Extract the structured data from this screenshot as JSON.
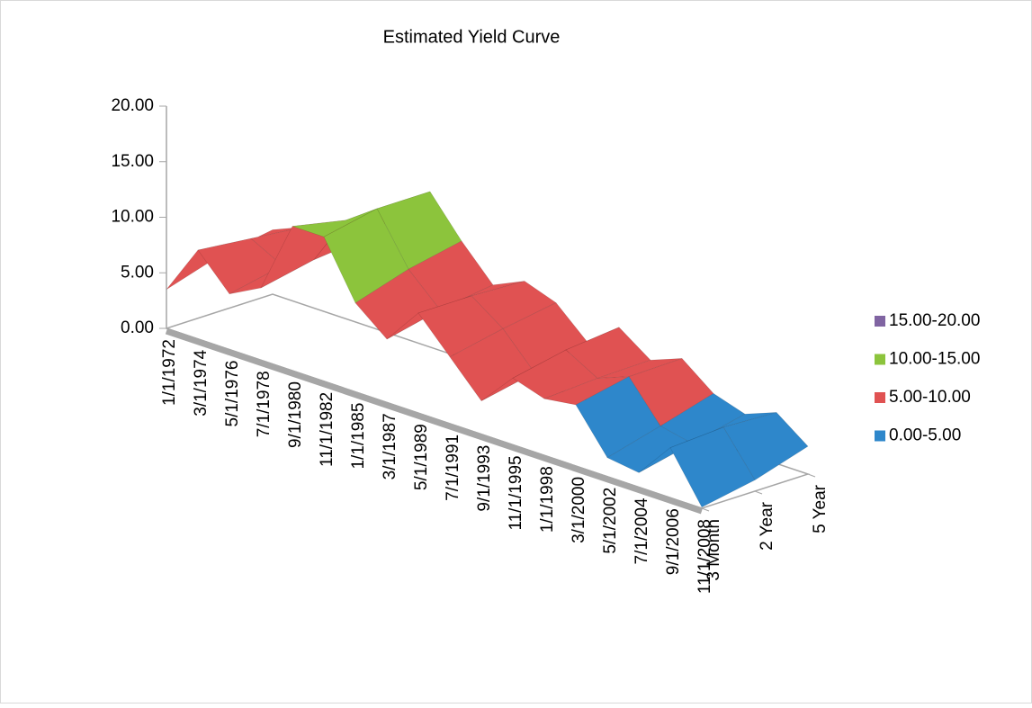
{
  "chart_data": {
    "type": "surface3d",
    "title": "Estimated Yield Curve",
    "categories": [
      "1/1/1972",
      "3/1/1974",
      "5/1/1976",
      "7/1/1978",
      "9/1/1980",
      "11/1/1982",
      "1/1/1985",
      "3/1/1987",
      "5/1/1989",
      "7/1/1991",
      "9/1/1993",
      "11/1/1995",
      "1/1/1998",
      "3/1/2000",
      "5/1/2002",
      "7/1/2004",
      "9/1/2006",
      "11/1/2008"
    ],
    "series": [
      {
        "name": "3 Month",
        "values": [
          3.5,
          8,
          5,
          6.5,
          13,
          13,
          8,
          5.7,
          9,
          6,
          3,
          6,
          5.1,
          5.5,
          1.7,
          1.3,
          4.5,
          0.1
        ]
      },
      {
        "name": "2 Year",
        "values": [
          5,
          7.5,
          6,
          7.5,
          12,
          14,
          9.5,
          6.8,
          9,
          7,
          4,
          7,
          5.4,
          6.5,
          3,
          2.4,
          4.8,
          1
        ]
      },
      {
        "name": "5 Year",
        "values": [
          5.8,
          7,
          7,
          8,
          11,
          14,
          10.5,
          7.5,
          8.8,
          7.8,
          5.2,
          7.5,
          5.5,
          6.6,
          4.4,
          3.5,
          4.6,
          2.5
        ]
      }
    ],
    "ylim": [
      0,
      20
    ],
    "yticks": [
      {
        "value": 0,
        "label": "0.00"
      },
      {
        "value": 5,
        "label": "5.00"
      },
      {
        "value": 10,
        "label": "10.00"
      },
      {
        "value": 15,
        "label": "15.00"
      },
      {
        "value": 20,
        "label": "20.00"
      }
    ],
    "legend": [
      {
        "label": "15.00-20.00",
        "color": "#8064a2"
      },
      {
        "label": "10.00-15.00",
        "color": "#8cc43c"
      },
      {
        "label": "5.00-10.00",
        "color": "#e05252"
      },
      {
        "label": "0.00-5.00",
        "color": "#2e87cb"
      }
    ]
  }
}
